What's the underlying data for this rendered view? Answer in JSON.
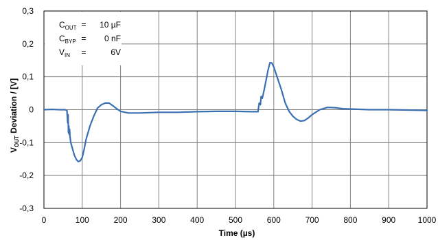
{
  "chart_data": {
    "type": "line",
    "title": "",
    "xlabel": "Time (µs)",
    "ylabel": {
      "main": "V",
      "sub": "OUT",
      "rest": " Deviation / [V]"
    },
    "xlim": [
      0,
      1000
    ],
    "ylim": [
      -0.3,
      0.3
    ],
    "xticks": [
      0,
      100,
      200,
      300,
      400,
      500,
      600,
      700,
      800,
      900,
      1000
    ],
    "xtick_labels": [
      "0",
      "100",
      "200",
      "300",
      "400",
      "500",
      "600",
      "700",
      "800",
      "900",
      "1000"
    ],
    "yticks": [
      0.3,
      0.2,
      0.1,
      0,
      -0.1,
      -0.2,
      -0.3
    ],
    "ytick_labels": [
      "0,3",
      "0,2",
      "0,1",
      "0",
      "-0,1",
      "-0,2",
      "-0,3"
    ],
    "grid": true,
    "line_color": "#3a6fb3",
    "annotations": [
      {
        "label": "C",
        "sub": "OUT",
        "eq": "=",
        "value": "10 µF"
      },
      {
        "label": "C",
        "sub": "BYP",
        "eq": "=",
        "value": "0 nF"
      },
      {
        "label": "V",
        "sub": "IN",
        "eq": "=",
        "value": "6V"
      }
    ],
    "series": [
      {
        "x": [
          0,
          20,
          40,
          55,
          60,
          62,
          63,
          64,
          65,
          66,
          67,
          68,
          70,
          75,
          80,
          85,
          90,
          95,
          100,
          105,
          110,
          120,
          130,
          140,
          150,
          160,
          170,
          180,
          190,
          200,
          220,
          250,
          300,
          350,
          400,
          450,
          500,
          540,
          559,
          560,
          562,
          565,
          567,
          570,
          575,
          580,
          585,
          590,
          595,
          600,
          610,
          620,
          630,
          640,
          650,
          660,
          670,
          680,
          690,
          700,
          720,
          740,
          760,
          780,
          800,
          850,
          900,
          950,
          1000
        ],
        "y": [
          0.0,
          0.001,
          0.0,
          0.0,
          -0.002,
          -0.04,
          -0.015,
          -0.07,
          -0.05,
          -0.075,
          -0.06,
          -0.08,
          -0.1,
          -0.12,
          -0.14,
          -0.152,
          -0.158,
          -0.155,
          -0.145,
          -0.12,
          -0.09,
          -0.05,
          -0.02,
          0.005,
          0.015,
          0.02,
          0.02,
          0.012,
          0.003,
          -0.005,
          -0.01,
          -0.01,
          -0.008,
          -0.008,
          -0.006,
          -0.005,
          -0.005,
          -0.006,
          -0.006,
          0.005,
          0.02,
          0.015,
          0.04,
          0.035,
          0.06,
          0.09,
          0.12,
          0.143,
          0.142,
          0.13,
          0.095,
          0.06,
          0.02,
          -0.005,
          -0.02,
          -0.03,
          -0.035,
          -0.033,
          -0.025,
          -0.015,
          0.0,
          0.007,
          0.006,
          0.003,
          0.002,
          0.0,
          0.0,
          -0.001,
          -0.002
        ]
      }
    ]
  }
}
